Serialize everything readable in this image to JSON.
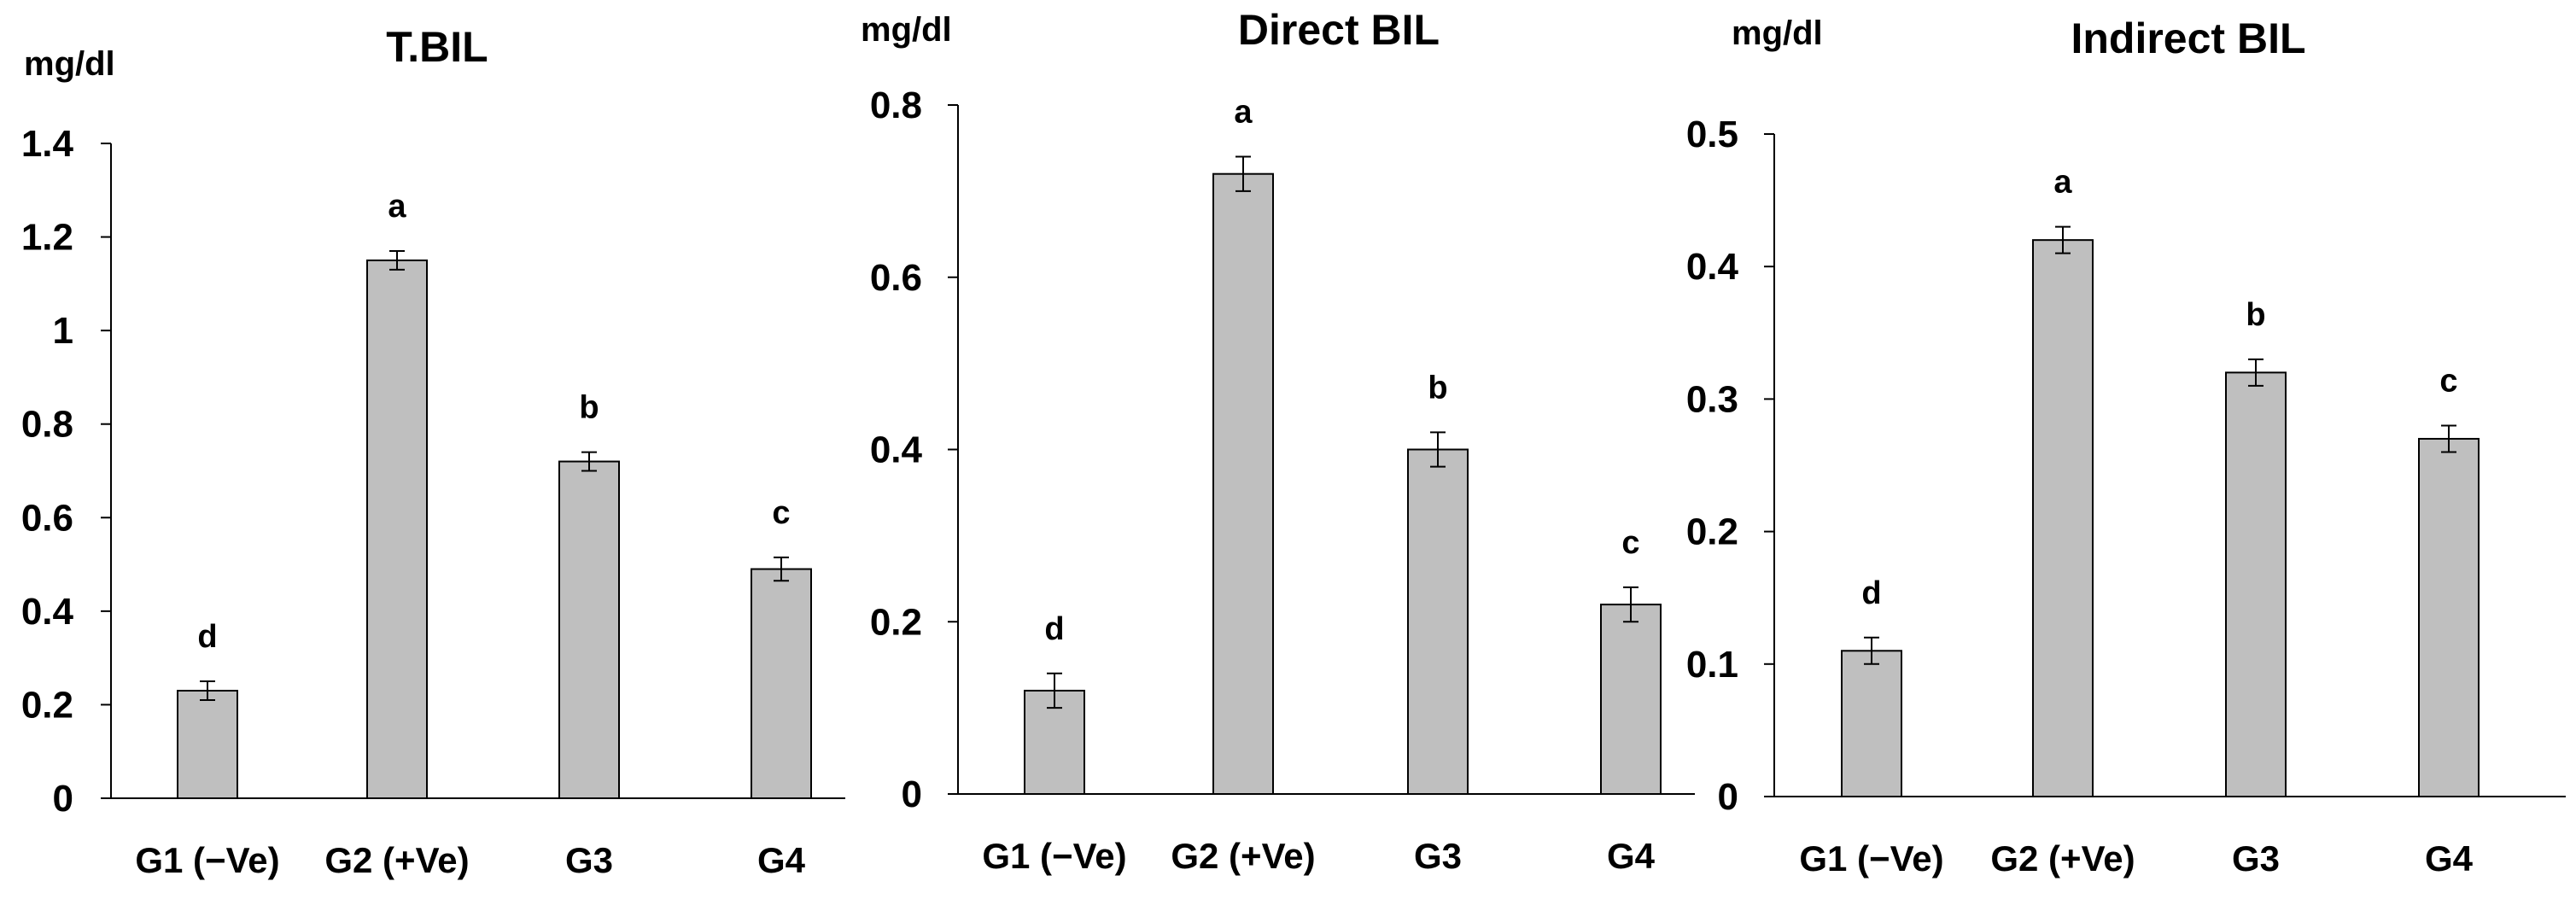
{
  "colors": {
    "bar_fill": "#bfbfbf",
    "bar_stroke": "#000000",
    "axis": "#000000",
    "background": "#ffffff"
  },
  "chart_data": [
    {
      "type": "bar",
      "title": "T.BIL",
      "unit_label": "mg/dl",
      "xlabel": "",
      "ylabel": "mg/dl",
      "ylim": [
        0,
        1.4
      ],
      "yticks": [
        0,
        0.2,
        0.4,
        0.6,
        0.8,
        1,
        1.2,
        1.4
      ],
      "ytick_labels": [
        "0",
        "0.2",
        "0.4",
        "0.6",
        "0.8",
        "1",
        "1.2",
        "1.4"
      ],
      "categories": [
        "G1 (−Ve)",
        "G2 (+Ve)",
        "G3",
        "G4"
      ],
      "values": [
        0.23,
        1.15,
        0.72,
        0.49
      ],
      "errors": [
        0.02,
        0.02,
        0.02,
        0.025
      ],
      "significance": [
        "d",
        "a",
        "b",
        "c"
      ],
      "grid": false
    },
    {
      "type": "bar",
      "title": "Direct BIL",
      "unit_label": "mg/dl",
      "xlabel": "",
      "ylabel": "mg/dl",
      "ylim": [
        0,
        0.8
      ],
      "yticks": [
        0,
        0.2,
        0.4,
        0.6,
        0.8
      ],
      "ytick_labels": [
        "0",
        "0.2",
        "0.4",
        "0.6",
        "0.8"
      ],
      "categories": [
        "G1 (−Ve)",
        "G2 (+Ve)",
        "G3",
        "G4"
      ],
      "values": [
        0.12,
        0.72,
        0.4,
        0.22
      ],
      "errors": [
        0.02,
        0.02,
        0.02,
        0.02
      ],
      "significance": [
        "d",
        "a",
        "b",
        "c"
      ],
      "grid": false
    },
    {
      "type": "bar",
      "title": "Indirect BIL",
      "unit_label": "mg/dl",
      "xlabel": "",
      "ylabel": "mg/dl",
      "ylim": [
        0,
        0.5
      ],
      "yticks": [
        0,
        0.1,
        0.2,
        0.3,
        0.4,
        0.5
      ],
      "ytick_labels": [
        "0",
        "0.1",
        "0.2",
        "0.3",
        "0.4",
        "0.5"
      ],
      "categories": [
        "G1 (−Ve)",
        "G2 (+Ve)",
        "G3",
        "G4"
      ],
      "values": [
        0.11,
        0.42,
        0.32,
        0.27
      ],
      "errors": [
        0.01,
        0.01,
        0.01,
        0.01
      ],
      "significance": [
        "d",
        "a",
        "b",
        "c"
      ],
      "grid": false
    }
  ]
}
